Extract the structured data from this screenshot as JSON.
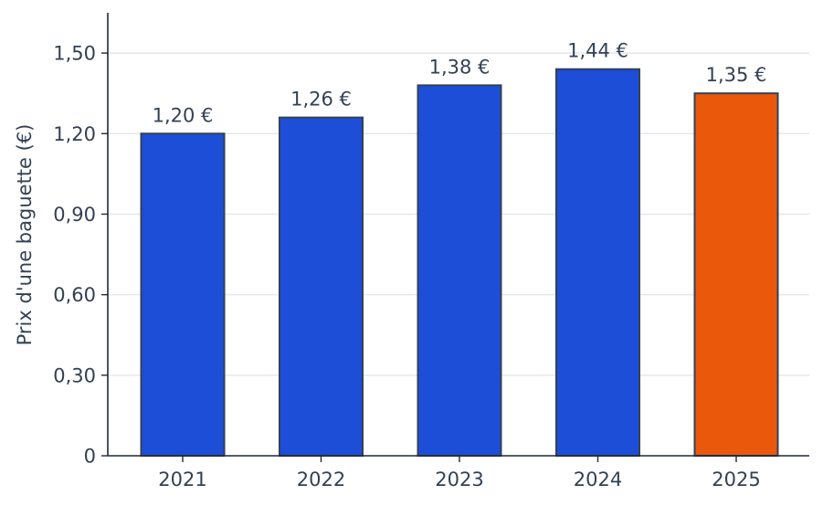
{
  "chart_data": {
    "type": "bar",
    "categories": [
      "2021",
      "2022",
      "2023",
      "2024",
      "2025"
    ],
    "values": [
      1.2,
      1.26,
      1.38,
      1.44,
      1.35
    ],
    "data_labels": [
      "1,20 €",
      "1,26 €",
      "1,38 €",
      "1,44 €",
      "1,35 €"
    ],
    "ylabel": "Prix d'une baguette (€)",
    "ylim": [
      0,
      1.65
    ],
    "yticks": [
      0,
      0.3,
      0.6,
      0.9,
      1.2,
      1.5
    ],
    "ytick_labels": [
      "0",
      "0,30",
      "0,60",
      "0,90",
      "1,20",
      "1,50"
    ],
    "grid": true,
    "bar_colors": [
      "#1d4ed8",
      "#1d4ed8",
      "#1d4ed8",
      "#1d4ed8",
      "#ea580c"
    ],
    "text_color": "#334155"
  }
}
